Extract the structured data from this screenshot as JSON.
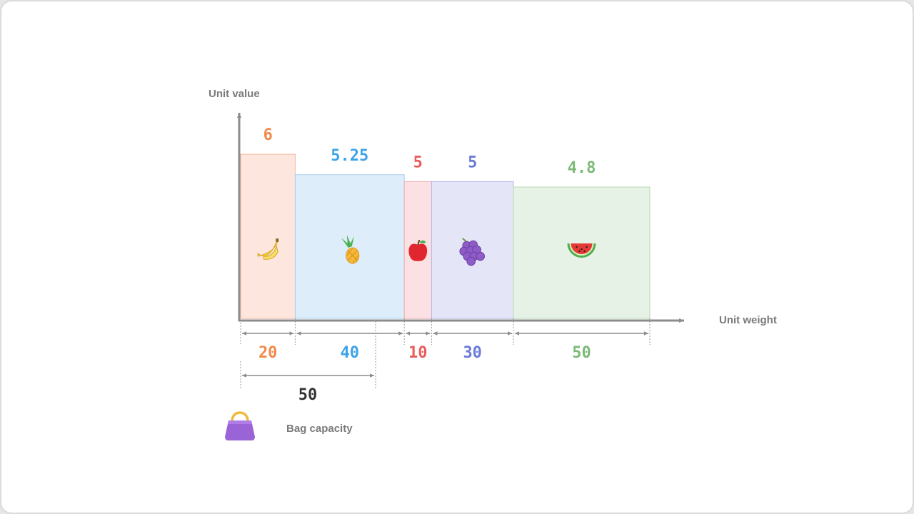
{
  "diagram": {
    "y_axis_label": "Unit value",
    "x_axis_label": "Unit weight",
    "legend_label": "Bag capacity",
    "legend_icon": "handbag-icon",
    "capacity": "50",
    "items": [
      {
        "name": "banana",
        "icon": "banana-icon",
        "unit_value": "6",
        "weight": "20",
        "value_num": 6,
        "weight_num": 20,
        "color": "#f08a4b",
        "fill": "#fde6dd",
        "stroke": "#f2b4a0"
      },
      {
        "name": "pineapple",
        "icon": "pineapple-icon",
        "unit_value": "5.25",
        "weight": "40",
        "value_num": 5.25,
        "weight_num": 40,
        "color": "#3da3e8",
        "fill": "#ddeefa",
        "stroke": "#a8cfee"
      },
      {
        "name": "apple",
        "icon": "apple-icon",
        "unit_value": "5",
        "weight": "10",
        "value_num": 5,
        "weight_num": 10,
        "color": "#ea5c5c",
        "fill": "#fbe1e3",
        "stroke": "#f0a9ae"
      },
      {
        "name": "grapes",
        "icon": "grapes-icon",
        "unit_value": "5",
        "weight": "30",
        "value_num": 5,
        "weight_num": 30,
        "color": "#6a7bd8",
        "fill": "#e4e5f7",
        "stroke": "#b3b7e6"
      },
      {
        "name": "watermelon",
        "icon": "watermelon-icon",
        "unit_value": "4.8",
        "weight": "50",
        "value_num": 4.8,
        "weight_num": 50,
        "color": "#7dba78",
        "fill": "#e6f2e5",
        "stroke": "#b8d9b5"
      }
    ]
  }
}
